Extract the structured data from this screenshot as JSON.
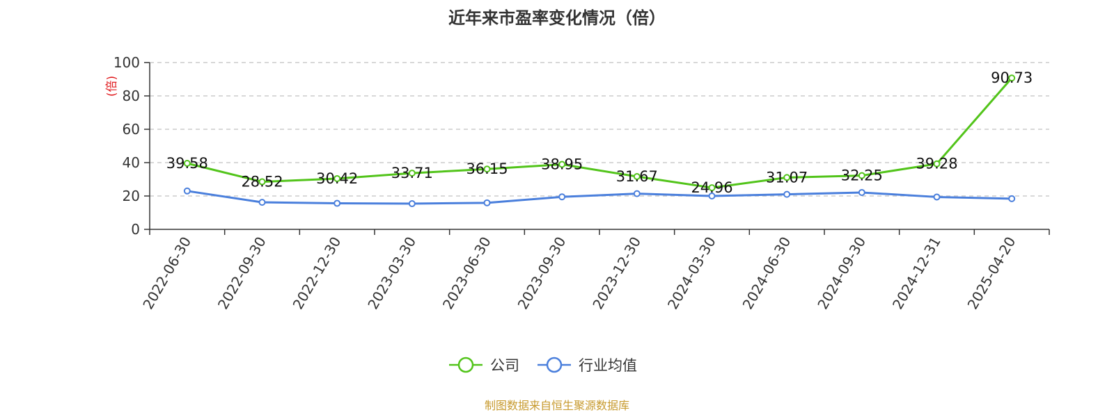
{
  "chart_data": {
    "type": "line",
    "title": "近年来市盈率变化情况（倍）",
    "ylabel": "(倍)",
    "ylim": [
      0,
      100
    ],
    "yticks": [
      0,
      20,
      40,
      60,
      80,
      100
    ],
    "grid": true,
    "legend_position": "bottom",
    "categories": [
      "2022-06-30",
      "2022-09-30",
      "2022-12-30",
      "2023-03-30",
      "2023-06-30",
      "2023-09-30",
      "2023-12-30",
      "2024-03-30",
      "2024-06-30",
      "2024-09-30",
      "2024-12-31",
      "2025-04-20"
    ],
    "series": [
      {
        "name": "公司",
        "color": "#52c41a",
        "show_labels": true,
        "values": [
          39.58,
          28.52,
          30.42,
          33.71,
          36.15,
          38.95,
          31.67,
          24.96,
          31.07,
          32.25,
          39.28,
          90.73
        ]
      },
      {
        "name": "行业均值",
        "color": "#4a7fdc",
        "show_labels": false,
        "values": [
          23.0,
          16.2,
          15.6,
          15.4,
          15.9,
          19.5,
          21.4,
          20.0,
          21.0,
          22.1,
          19.4,
          18.4
        ]
      }
    ],
    "source": "制图数据来自恒生聚源数据库"
  }
}
